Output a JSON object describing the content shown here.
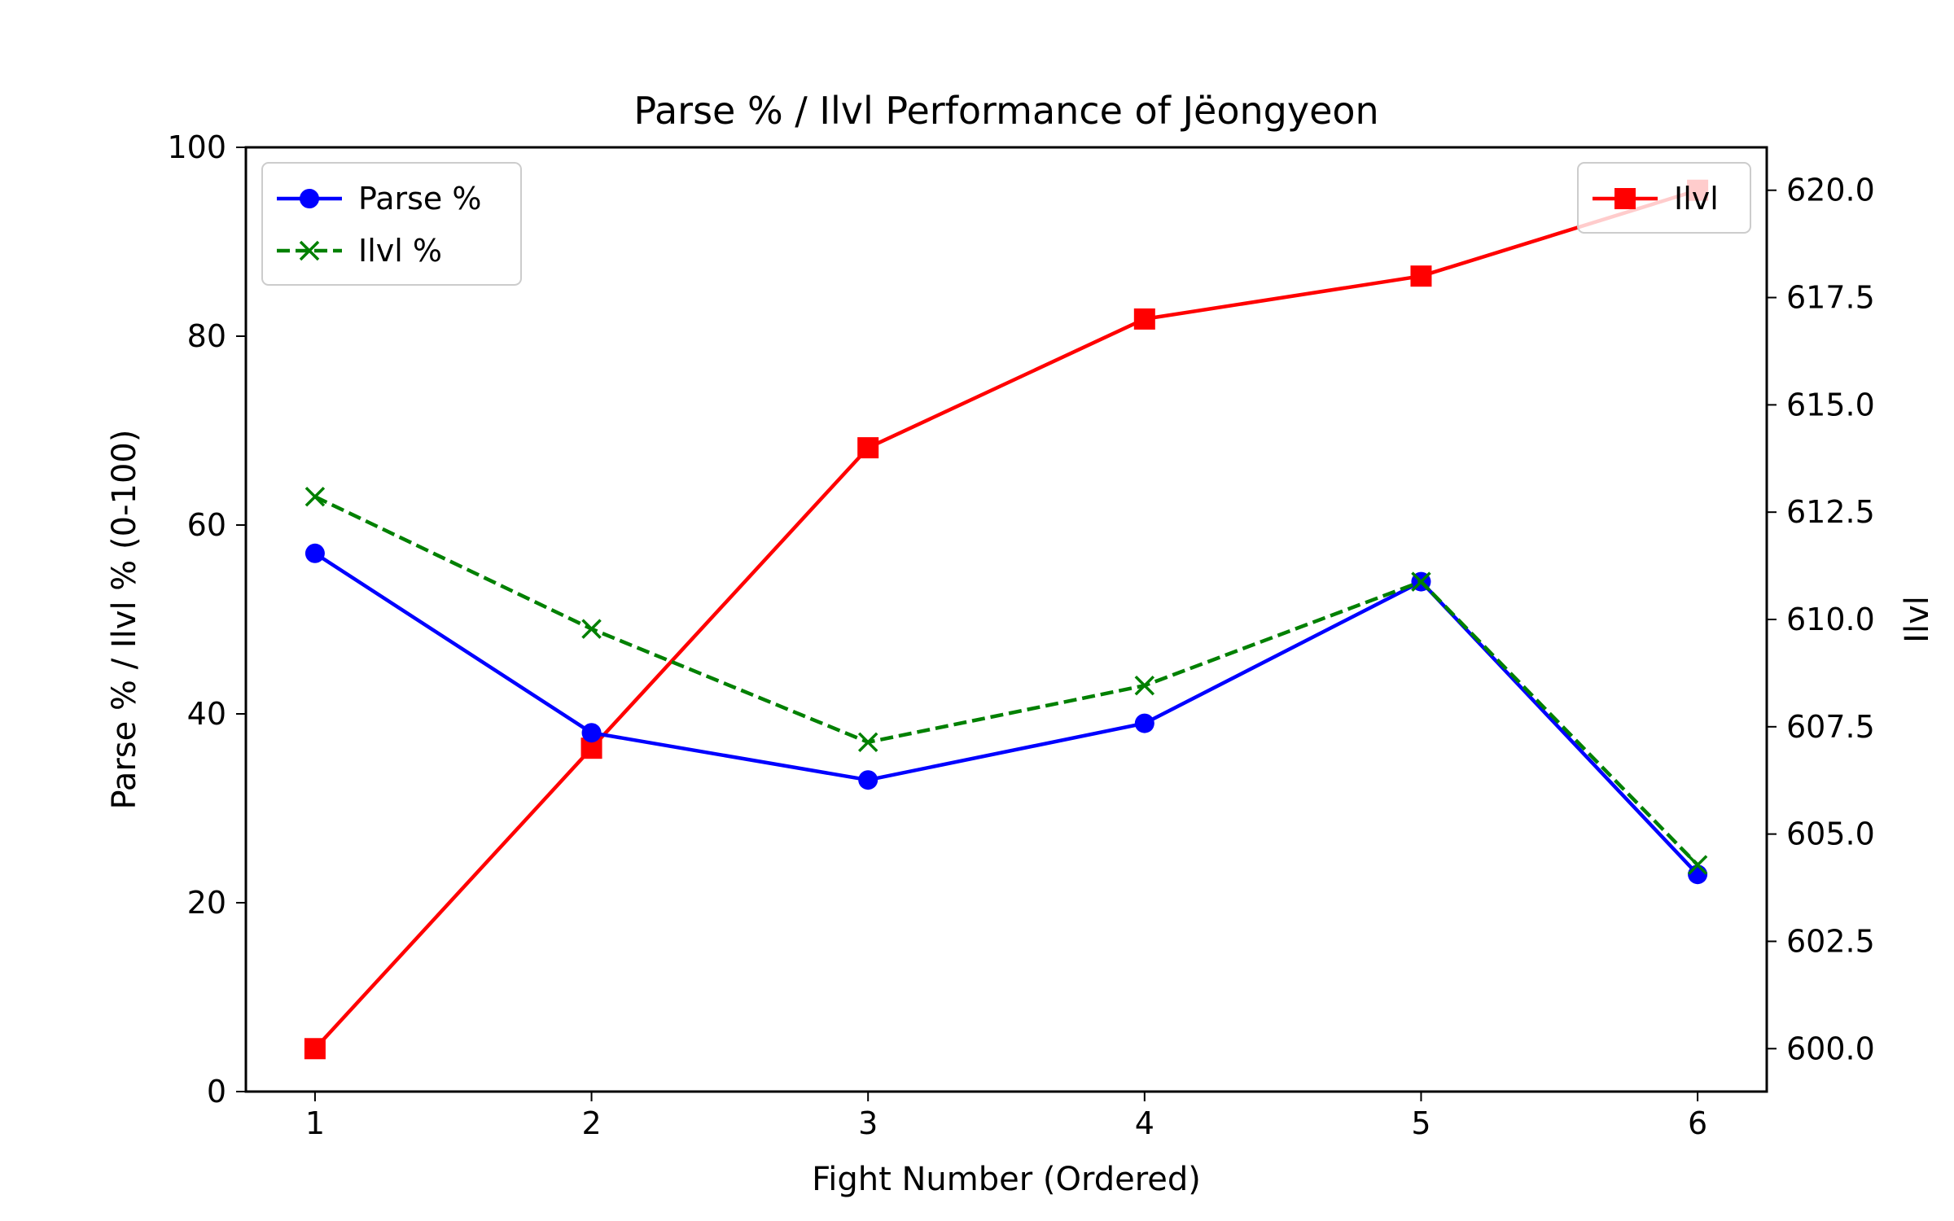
{
  "chart_data": {
    "type": "line",
    "title": "Parse % / Ilvl Performance of Jëongyeon",
    "xlabel": "Fight Number (Ordered)",
    "ylabel_left": "Parse % / Ilvl % (0-100)",
    "ylabel_right": "Ilvl",
    "x": [
      1,
      2,
      3,
      4,
      5,
      6
    ],
    "xlim": [
      0.75,
      6.25
    ],
    "ylim_left": [
      0,
      100
    ],
    "ylim_right": [
      599.0,
      621.0
    ],
    "xticks": [
      "1",
      "2",
      "3",
      "4",
      "5",
      "6"
    ],
    "yticks_left": [
      "0",
      "20",
      "40",
      "60",
      "80",
      "100"
    ],
    "yticks_right": [
      "600.0",
      "602.5",
      "605.0",
      "607.5",
      "610.0",
      "612.5",
      "615.0",
      "617.5",
      "620.0"
    ],
    "grid": false,
    "series": [
      {
        "name": "Parse %",
        "axis": "left",
        "color": "#0000ff",
        "style": "solid",
        "marker": "circle",
        "values": [
          57,
          38,
          33,
          39,
          54,
          23
        ]
      },
      {
        "name": "Ilvl %",
        "axis": "left",
        "color": "#008000",
        "style": "dashed",
        "marker": "x",
        "values": [
          63,
          49,
          37,
          43,
          54,
          24
        ]
      },
      {
        "name": "Ilvl",
        "axis": "right",
        "color": "#ff0000",
        "style": "solid",
        "marker": "square",
        "values": [
          600,
          607,
          614,
          617,
          618,
          620
        ]
      }
    ],
    "legend_left": {
      "placement": "upper-left",
      "entries": [
        "Parse %",
        "Ilvl %"
      ]
    },
    "legend_right": {
      "placement": "upper-right",
      "entries": [
        "Ilvl"
      ]
    },
    "label_colors": {
      "left": "#0000ff",
      "right": "#ff0000"
    }
  }
}
